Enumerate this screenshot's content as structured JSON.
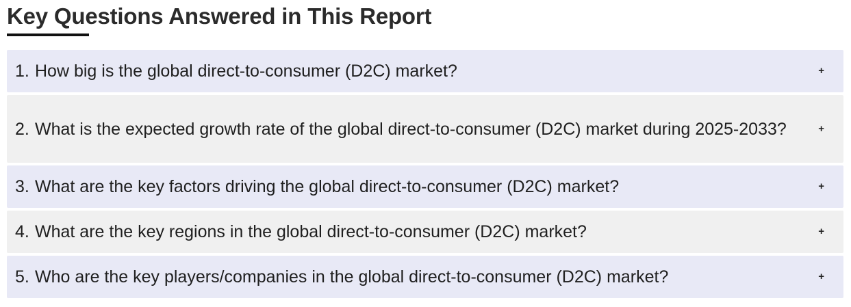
{
  "heading": "Key Questions Answered in This Report",
  "toggle_symbol": "+",
  "colors": {
    "row_odd": "#e8e9f6",
    "row_even": "#f0f0f0",
    "underline": "#111111"
  },
  "faq": [
    {
      "number": "1.",
      "question": "How big is the global direct-to-consumer (D2C) market?"
    },
    {
      "number": "2.",
      "question": "What is the expected growth rate of the global direct-to-consumer (D2C) market during 2025-2033?"
    },
    {
      "number": "3.",
      "question": "What are the key factors driving the global direct-to-consumer (D2C) market?"
    },
    {
      "number": "4.",
      "question": "What are the key regions in the global direct-to-consumer (D2C) market?"
    },
    {
      "number": "5.",
      "question": "Who are the key players/companies in the global direct-to-consumer (D2C) market?"
    }
  ]
}
